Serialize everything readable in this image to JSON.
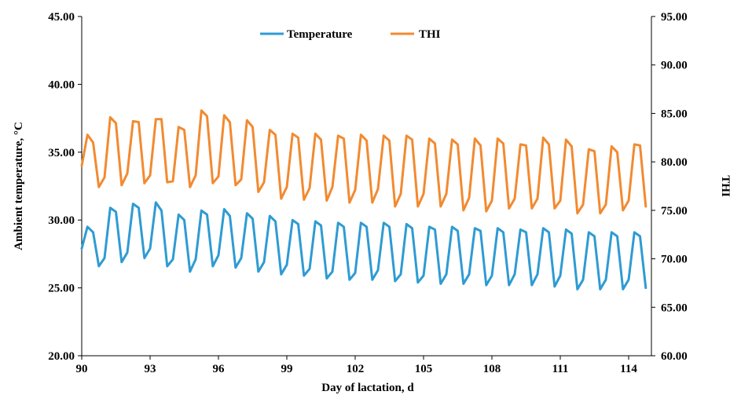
{
  "chart_data": {
    "type": "line",
    "xlabel": "Day of lactation, d",
    "ylabel_left": "Ambient temperature, °C",
    "ylabel_right": "THI",
    "xlim": [
      90,
      115
    ],
    "xticks": [
      "90",
      "93",
      "96",
      "99",
      "102",
      "105",
      "108",
      "111",
      "114"
    ],
    "ylim_left": [
      20,
      45
    ],
    "yticks_left": [
      "20.00",
      "25.00",
      "30.00",
      "35.00",
      "40.00",
      "45.00"
    ],
    "ylim_right": [
      60,
      95
    ],
    "yticks_right": [
      "60.00",
      "65.00",
      "70.00",
      "75.00",
      "80.00",
      "85.00",
      "90.00",
      "95.00"
    ],
    "legend_position": "top-center",
    "grid": false,
    "x": [
      90.0,
      90.25,
      90.5,
      90.75,
      91.0,
      91.25,
      91.5,
      91.75,
      92.0,
      92.25,
      92.5,
      92.75,
      93.0,
      93.25,
      93.5,
      93.75,
      94.0,
      94.25,
      94.5,
      94.75,
      95.0,
      95.25,
      95.5,
      95.75,
      96.0,
      96.25,
      96.5,
      96.75,
      97.0,
      97.25,
      97.5,
      97.75,
      98.0,
      98.25,
      98.5,
      98.75,
      99.0,
      99.25,
      99.5,
      99.75,
      100.0,
      100.25,
      100.5,
      100.75,
      101.0,
      101.25,
      101.5,
      101.75,
      102.0,
      102.25,
      102.5,
      102.75,
      103.0,
      103.25,
      103.5,
      103.75,
      104.0,
      104.25,
      104.5,
      104.75,
      105.0,
      105.25,
      105.5,
      105.75,
      106.0,
      106.25,
      106.5,
      106.75,
      107.0,
      107.25,
      107.5,
      107.75,
      108.0,
      108.25,
      108.5,
      108.75,
      109.0,
      109.25,
      109.5,
      109.75,
      110.0,
      110.25,
      110.5,
      110.75,
      111.0,
      111.25,
      111.5,
      111.75,
      112.0,
      112.25,
      112.5,
      112.75,
      113.0,
      113.25,
      113.5,
      113.75,
      114.0,
      114.25,
      114.5,
      114.75
    ],
    "series": [
      {
        "name": "Temperature",
        "axis": "left",
        "color": "#2E9BD3",
        "values": [
          27.9,
          29.5,
          29.1,
          26.6,
          27.2,
          30.9,
          30.6,
          26.9,
          27.6,
          31.2,
          30.9,
          27.2,
          27.9,
          31.3,
          30.7,
          26.6,
          27.1,
          30.4,
          30.0,
          26.2,
          27.1,
          30.7,
          30.4,
          26.6,
          27.4,
          30.8,
          30.3,
          26.5,
          27.2,
          30.5,
          30.1,
          26.2,
          26.9,
          30.3,
          29.9,
          26.0,
          26.7,
          30.0,
          29.7,
          25.9,
          26.4,
          29.9,
          29.6,
          25.7,
          26.2,
          29.8,
          29.5,
          25.6,
          26.1,
          29.8,
          29.5,
          25.6,
          26.3,
          29.8,
          29.5,
          25.5,
          26.0,
          29.7,
          29.4,
          25.4,
          25.9,
          29.5,
          29.3,
          25.3,
          26.0,
          29.5,
          29.2,
          25.3,
          26.0,
          29.4,
          29.2,
          25.2,
          25.9,
          29.4,
          29.1,
          25.2,
          26.0,
          29.3,
          29.1,
          25.2,
          26.0,
          29.4,
          29.1,
          25.1,
          25.9,
          29.3,
          29.0,
          24.9,
          25.6,
          29.1,
          28.8,
          24.9,
          25.6,
          29.1,
          28.8,
          24.9,
          25.6,
          29.1,
          28.8,
          25.0
        ]
      },
      {
        "name": "THI",
        "axis": "right",
        "color": "#F28A30",
        "values": [
          79.6,
          82.8,
          82.0,
          77.4,
          78.4,
          84.6,
          84.0,
          77.6,
          78.8,
          84.2,
          84.1,
          77.8,
          78.6,
          84.4,
          84.4,
          77.9,
          78.0,
          83.6,
          83.3,
          77.4,
          78.6,
          85.3,
          84.7,
          77.8,
          78.5,
          84.8,
          84.1,
          77.6,
          78.2,
          84.3,
          83.6,
          76.9,
          77.9,
          83.3,
          82.8,
          76.2,
          77.4,
          82.9,
          82.5,
          76.1,
          77.3,
          82.9,
          82.3,
          76.0,
          77.4,
          82.7,
          82.4,
          75.8,
          77.1,
          82.8,
          82.2,
          75.8,
          77.2,
          82.7,
          82.2,
          75.4,
          76.7,
          82.7,
          82.3,
          75.4,
          76.7,
          82.4,
          81.9,
          75.4,
          76.7,
          82.3,
          81.8,
          75.0,
          76.3,
          82.4,
          81.7,
          74.9,
          76.0,
          82.4,
          81.9,
          75.2,
          76.2,
          81.8,
          81.7,
          75.2,
          76.2,
          82.5,
          81.8,
          75.2,
          76.0,
          82.3,
          81.6,
          74.7,
          75.6,
          81.3,
          81.1,
          74.7,
          75.6,
          81.6,
          81.0,
          75.0,
          76.0,
          81.8,
          81.7,
          75.4
        ]
      }
    ]
  }
}
